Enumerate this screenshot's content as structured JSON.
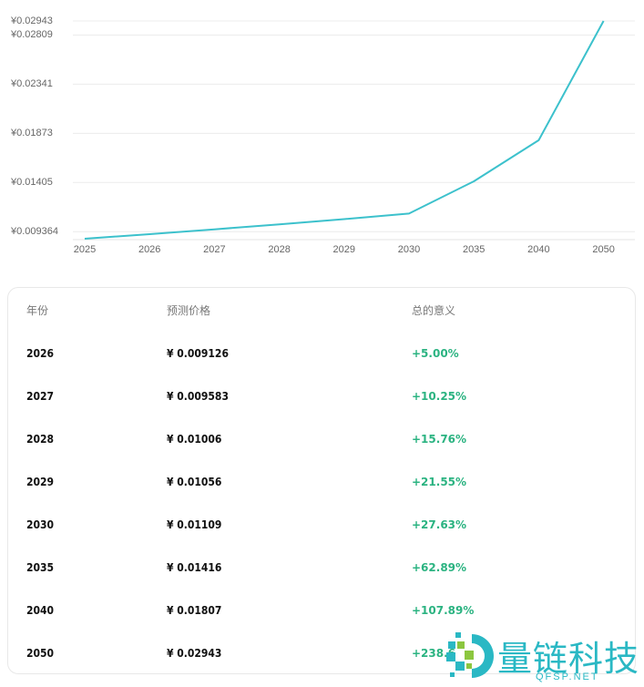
{
  "chart_data": {
    "type": "line",
    "title": "",
    "xlabel": "",
    "ylabel": "",
    "categories": [
      "2025",
      "2026",
      "2027",
      "2028",
      "2029",
      "2030",
      "2035",
      "2040",
      "2050"
    ],
    "series": [
      {
        "name": "预测价格",
        "color": "#3cc1cc",
        "values": [
          0.008692,
          0.009126,
          0.009583,
          0.01006,
          0.01056,
          0.01109,
          0.01416,
          0.01807,
          0.02943
        ]
      }
    ],
    "yticks": [
      "¥0.009364",
      "¥0.01405",
      "¥0.01873",
      "¥0.02341",
      "¥0.02809",
      "¥0.02943"
    ],
    "ytick_values": [
      0.009364,
      0.01405,
      0.01873,
      0.02341,
      0.02809,
      0.02943
    ],
    "ylim": [
      0.008692,
      0.02943
    ],
    "grid": true,
    "legend": "none"
  },
  "table": {
    "headers": [
      "年份",
      "预测价格",
      "总的意义"
    ],
    "rows": [
      {
        "year": "2026",
        "price": "¥ 0.009126",
        "change": "+5.00%"
      },
      {
        "year": "2027",
        "price": "¥ 0.009583",
        "change": "+10.25%"
      },
      {
        "year": "2028",
        "price": "¥ 0.01006",
        "change": "+15.76%"
      },
      {
        "year": "2029",
        "price": "¥ 0.01056",
        "change": "+21.55%"
      },
      {
        "year": "2030",
        "price": "¥ 0.01109",
        "change": "+27.63%"
      },
      {
        "year": "2035",
        "price": "¥ 0.01416",
        "change": "+62.89%"
      },
      {
        "year": "2040",
        "price": "¥ 0.01807",
        "change": "+107.89%"
      },
      {
        "year": "2050",
        "price": "¥ 0.02943",
        "change": "+238.6"
      }
    ]
  },
  "watermark": {
    "name": "量链科技",
    "domain": "QFSP.NET"
  }
}
